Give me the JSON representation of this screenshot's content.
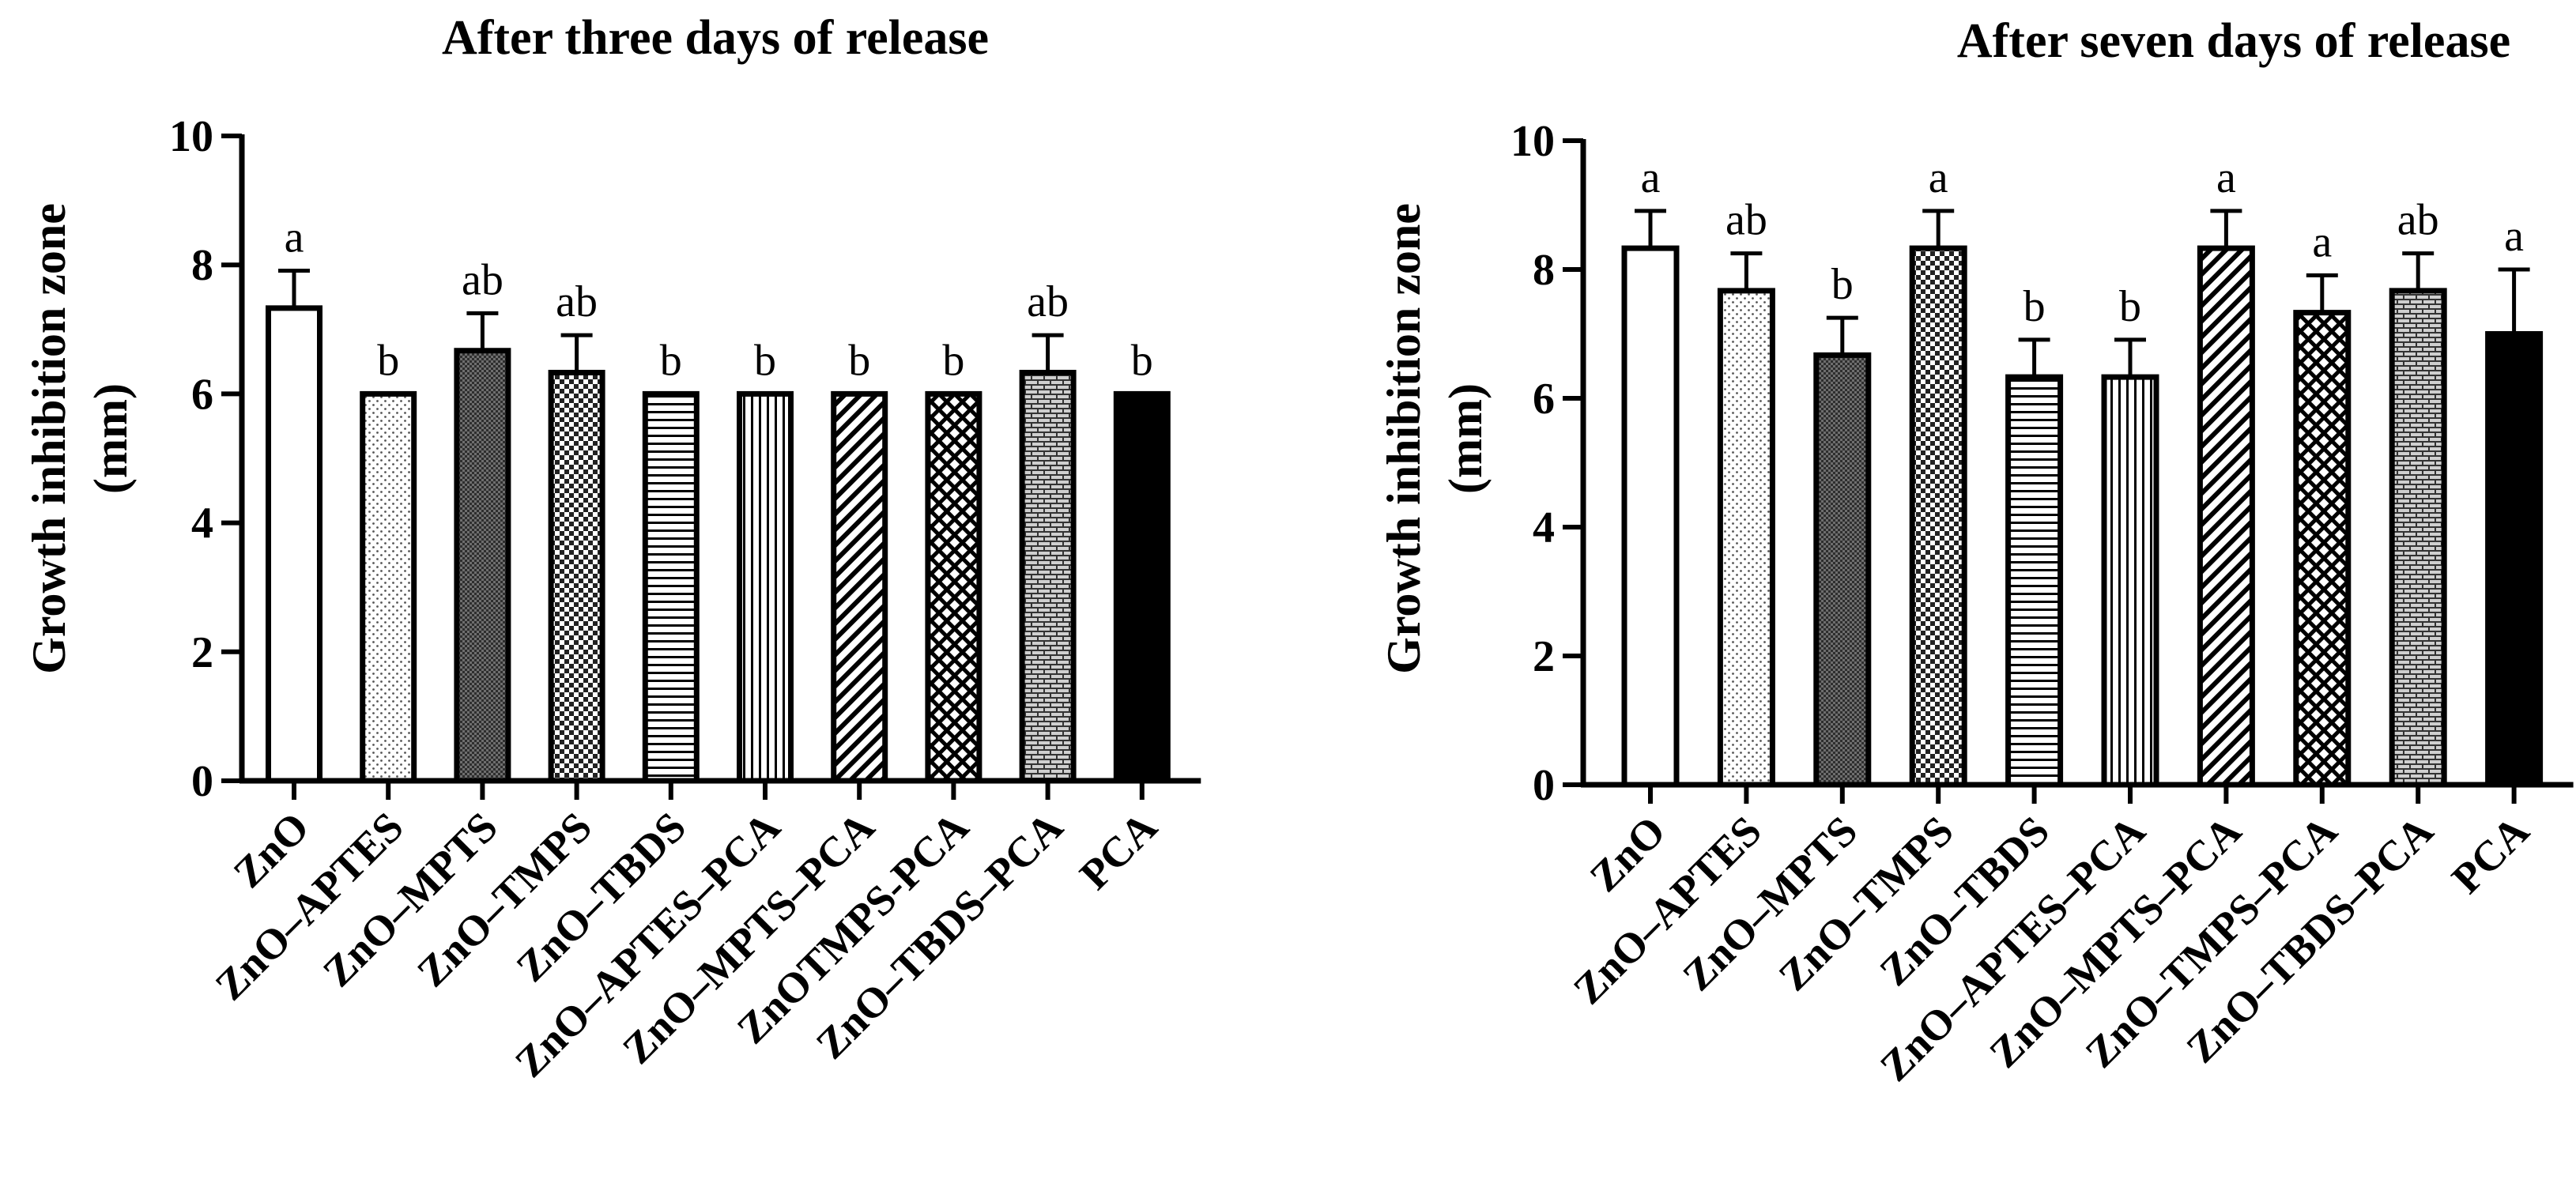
{
  "chart_data": [
    {
      "type": "bar",
      "title": "After three days of release",
      "ylabel_line1": "Growth inhibition zone",
      "ylabel_line2": "(mm)",
      "xlabel": "",
      "ylim": [
        0,
        10
      ],
      "yticks": [
        "0",
        "2",
        "4",
        "6",
        "8",
        "10"
      ],
      "categories": [
        "ZnO",
        "ZnO–APTES",
        "ZnO–MPTS",
        "ZnO–TMPS",
        "ZnO–TBDS",
        "ZnO–APTES–PCA",
        "ZnO–MPTS–PCA",
        "ZnOTMPS-PCA",
        "ZnO–TBDS–PCA",
        "PCA"
      ],
      "values": [
        7.33,
        6.0,
        6.67,
        6.33,
        6.0,
        6.0,
        6.0,
        6.0,
        6.33,
        6.0
      ],
      "errors": [
        0.58,
        0,
        0.58,
        0.58,
        0,
        0,
        0,
        0,
        0.58,
        0
      ],
      "letters": [
        "a",
        "b",
        "ab",
        "ab",
        "b",
        "b",
        "b",
        "b",
        "ab",
        "b"
      ],
      "patterns": [
        "white",
        "dots",
        "dense",
        "checker",
        "hlines",
        "vlines",
        "diag",
        "cross",
        "brick",
        "black"
      ]
    },
    {
      "type": "bar",
      "title": "After seven days of release",
      "ylabel_line1": "Growth inhibition zone",
      "ylabel_line2": "(mm)",
      "xlabel": "",
      "ylim": [
        0,
        10
      ],
      "yticks": [
        "0",
        "2",
        "4",
        "6",
        "8",
        "10"
      ],
      "categories": [
        "ZnO",
        "ZnO–APTES",
        "ZnO–MPTS",
        "ZnO–TMPS",
        "ZnO–TBDS",
        "ZnO–APTES–PCA",
        "ZnO–MPTS–PCA",
        "ZnO–TMPS–PCA",
        "ZnO–TBDS–PCA",
        "PCA"
      ],
      "values": [
        8.33,
        7.67,
        6.67,
        8.33,
        6.33,
        6.33,
        8.33,
        7.33,
        7.67,
        7.0
      ],
      "errors": [
        0.58,
        0.58,
        0.58,
        0.58,
        0.58,
        0.58,
        0.58,
        0.58,
        0.58,
        1.0
      ],
      "letters": [
        "a",
        "ab",
        "b",
        "a",
        "b",
        "b",
        "a",
        "a",
        "ab",
        "a"
      ],
      "patterns": [
        "white",
        "dots",
        "dense",
        "checker",
        "hlines",
        "vlines",
        "diag",
        "cross",
        "brick",
        "black"
      ]
    }
  ]
}
